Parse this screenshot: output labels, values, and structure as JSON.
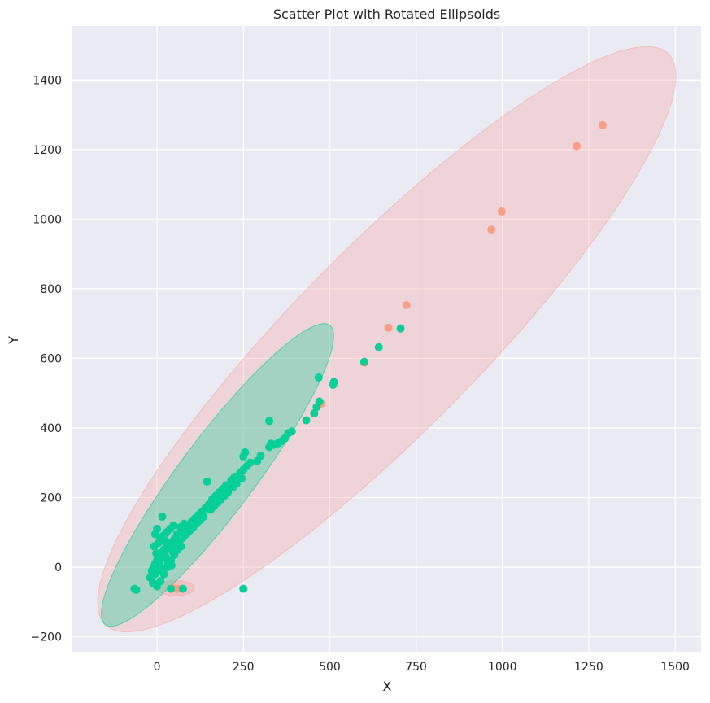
{
  "chart_data": {
    "type": "scatter",
    "title": "Scatter Plot with Rotated Ellipsoids",
    "xlabel": "X",
    "ylabel": "Y",
    "xlim": [
      -245,
      1575
    ],
    "ylim": [
      -243,
      1555
    ],
    "xticks": [
      0,
      250,
      500,
      750,
      1000,
      1250,
      1500
    ],
    "xtick_labels": [
      "0",
      "250",
      "500",
      "750",
      "1000",
      "1250",
      "1500"
    ],
    "yticks": [
      -200,
      0,
      200,
      400,
      600,
      800,
      1000,
      1200,
      1400
    ],
    "ytick_labels": [
      "−200",
      "0",
      "200",
      "400",
      "600",
      "800",
      "1000",
      "1200",
      "1400"
    ],
    "grid": true,
    "background": "#eaeaf2",
    "series": [
      {
        "color": "#fa9f85",
        "points": [
          [
            1290,
            1270
          ],
          [
            1215,
            1210
          ],
          [
            998,
            1022
          ],
          [
            968,
            970
          ],
          [
            722,
            753
          ],
          [
            670,
            688
          ],
          [
            600,
            588
          ],
          [
            475,
            470
          ],
          [
            45,
            -60
          ],
          [
            60,
            -62
          ]
        ],
        "ellipses": [
          {
            "center": [
              665,
              655
            ],
            "p1": [
              1480,
              1475
            ],
            "p2": [
              490,
              455
            ],
            "fill": "#f5a8a8",
            "opacity": 0.35
          },
          {
            "center": [
              55,
              -60
            ],
            "p1": [
              108,
              -60
            ],
            "p2": [
              55,
              -38
            ],
            "fill": "#f5a8a8",
            "opacity": 0.4
          }
        ]
      },
      {
        "color": "#06cf98",
        "points": [
          [
            -65,
            -62
          ],
          [
            -60,
            -65
          ],
          [
            40,
            -62
          ],
          [
            75,
            -62
          ],
          [
            250,
            -62
          ],
          [
            705,
            686
          ],
          [
            642,
            632
          ],
          [
            600,
            590
          ],
          [
            512,
            532
          ],
          [
            510,
            524
          ],
          [
            468,
            545
          ],
          [
            470,
            476
          ],
          [
            462,
            460
          ],
          [
            455,
            442
          ],
          [
            432,
            422
          ],
          [
            325,
            420
          ],
          [
            390,
            390
          ],
          [
            380,
            385
          ],
          [
            370,
            370
          ],
          [
            360,
            362
          ],
          [
            350,
            356
          ],
          [
            340,
            352
          ],
          [
            330,
            355
          ],
          [
            325,
            345
          ],
          [
            300,
            320
          ],
          [
            255,
            330
          ],
          [
            250,
            318
          ],
          [
            290,
            305
          ],
          [
            270,
            300
          ],
          [
            260,
            290
          ],
          [
            250,
            280
          ],
          [
            240,
            270
          ],
          [
            225,
            260
          ],
          [
            215,
            250
          ],
          [
            200,
            235
          ],
          [
            190,
            225
          ],
          [
            180,
            215
          ],
          [
            170,
            205
          ],
          [
            160,
            195
          ],
          [
            150,
            180
          ],
          [
            145,
            246
          ],
          [
            140,
            170
          ],
          [
            130,
            160
          ],
          [
            120,
            150
          ],
          [
            110,
            140
          ],
          [
            100,
            130
          ],
          [
            90,
            120
          ],
          [
            80,
            110
          ],
          [
            70,
            100
          ],
          [
            60,
            90
          ],
          [
            50,
            80
          ],
          [
            40,
            70
          ],
          [
            30,
            60
          ],
          [
            20,
            50
          ],
          [
            10,
            40
          ],
          [
            5,
            30
          ],
          [
            0,
            20
          ],
          [
            -5,
            10
          ],
          [
            -10,
            0
          ],
          [
            -15,
            -10
          ],
          [
            15,
            145
          ],
          [
            0,
            110
          ],
          [
            -5,
            95
          ],
          [
            10,
            85
          ],
          [
            25,
            75
          ],
          [
            35,
            55
          ],
          [
            45,
            45
          ],
          [
            55,
            65
          ],
          [
            65,
            75
          ],
          [
            75,
            85
          ],
          [
            85,
            95
          ],
          [
            95,
            105
          ],
          [
            105,
            115
          ],
          [
            115,
            125
          ],
          [
            125,
            135
          ],
          [
            135,
            145
          ],
          [
            155,
            165
          ],
          [
            165,
            175
          ],
          [
            175,
            185
          ],
          [
            185,
            195
          ],
          [
            195,
            205
          ],
          [
            205,
            215
          ],
          [
            220,
            230
          ],
          [
            230,
            240
          ],
          [
            245,
            255
          ],
          [
            -20,
            -30
          ],
          [
            -12,
            -45
          ],
          [
            0,
            -55
          ],
          [
            10,
            -40
          ],
          [
            20,
            -20
          ],
          [
            30,
            0
          ],
          [
            40,
            20
          ],
          [
            50,
            35
          ],
          [
            60,
            50
          ],
          [
            70,
            60
          ],
          [
            -8,
            60
          ],
          [
            5,
            70
          ],
          [
            18,
            90
          ],
          [
            28,
            100
          ],
          [
            38,
            110
          ],
          [
            48,
            120
          ],
          [
            58,
            95
          ],
          [
            68,
            115
          ],
          [
            78,
            125
          ],
          [
            88,
            105
          ],
          [
            -2,
            40
          ],
          [
            8,
            10
          ],
          [
            12,
            25
          ],
          [
            22,
            35
          ],
          [
            32,
            15
          ],
          [
            42,
            5
          ],
          [
            2,
            -10
          ],
          [
            -6,
            -20
          ],
          [
            14,
            -5
          ],
          [
            26,
            28
          ]
        ],
        "ellipses": [
          {
            "center": [
              175,
              265
            ],
            "p1": [
              -150,
              -165
            ],
            "p2": [
              265,
              205
            ],
            "fill": "#06cf98",
            "opacity": 0.32
          }
        ]
      }
    ]
  }
}
